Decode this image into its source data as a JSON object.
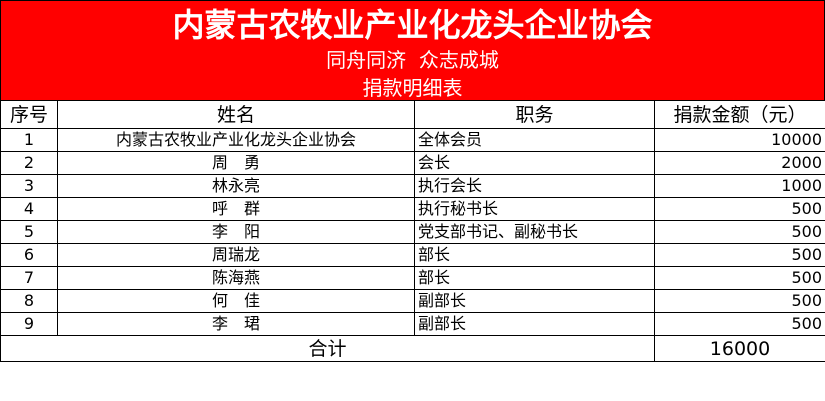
{
  "header": {
    "title": "内蒙古农牧业产业化龙头企业协会",
    "slogan": "同舟同济  众志成城",
    "subtitle": "捐款明细表",
    "background_color": "#ff0000"
  },
  "table": {
    "columns": [
      "序号",
      "姓名",
      "职务",
      "捐款金额（元）"
    ],
    "rows": [
      {
        "no": "1",
        "name": "内蒙古农牧业产业化龙头企业协会",
        "position": "全体会员",
        "amount": "10000"
      },
      {
        "no": "2",
        "name": "周　勇",
        "position": "会长",
        "amount": "2000"
      },
      {
        "no": "3",
        "name": "林永亮",
        "position": "执行会长",
        "amount": "1000"
      },
      {
        "no": "4",
        "name": "呼　群",
        "position": "执行秘书长",
        "amount": "500"
      },
      {
        "no": "5",
        "name": "李　阳",
        "position": "党支部书记、副秘书长",
        "amount": "500"
      },
      {
        "no": "6",
        "name": "周瑞龙",
        "position": "部长",
        "amount": "500"
      },
      {
        "no": "7",
        "name": "陈海燕",
        "position": "部长",
        "amount": "500"
      },
      {
        "no": "8",
        "name": "何　佳",
        "position": "副部长",
        "amount": "500"
      },
      {
        "no": "9",
        "name": "李　珺",
        "position": "副部长",
        "amount": "500"
      }
    ],
    "total_label": "合计",
    "total_amount": "16000"
  }
}
